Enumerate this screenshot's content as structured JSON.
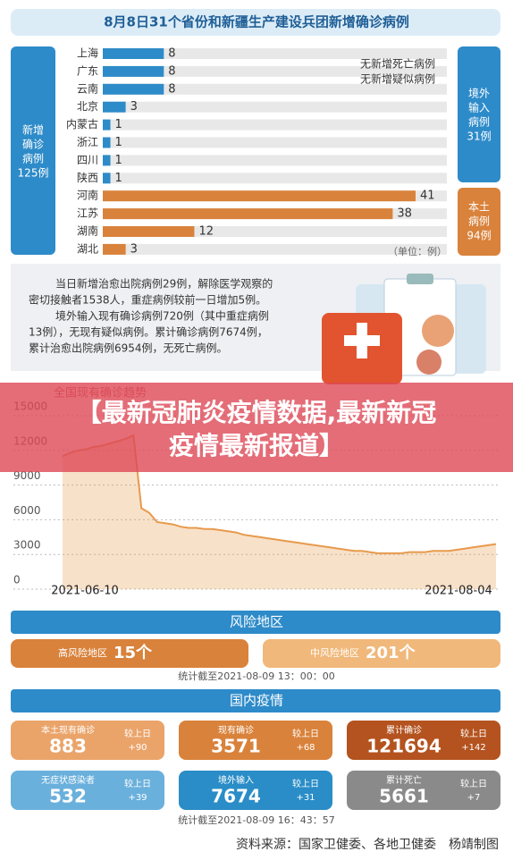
{
  "header": {
    "title": "8月8日31个省份和新疆生产建设兵团新增确诊病例"
  },
  "totals": {
    "new": [
      "新增",
      "确诊",
      "病例",
      "125例"
    ],
    "imported": [
      "境外",
      "输入",
      "病例",
      "31例"
    ],
    "local": [
      "本土",
      "病例",
      "94例"
    ]
  },
  "chart_data": [
    {
      "type": "bar",
      "categories": [
        "上海",
        "广东",
        "云南",
        "北京",
        "内蒙古",
        "浙江",
        "四川",
        "陕西",
        "河南",
        "江苏",
        "湖南",
        "湖北"
      ],
      "values": [
        8,
        8,
        8,
        3,
        1,
        1,
        1,
        1,
        41,
        38,
        12,
        3
      ],
      "colors": [
        "#2e8bc9",
        "#2e8bc9",
        "#2e8bc9",
        "#2e8bc9",
        "#2e8bc9",
        "#2e8bc9",
        "#2e8bc9",
        "#2e8bc9",
        "#d9823b",
        "#d9823b",
        "#d9823b",
        "#d9823b"
      ],
      "annotations": [
        "无新增死亡病例",
        "无新增疑似病例"
      ],
      "unit": "（单位：例）"
    },
    {
      "type": "area",
      "title": "全国现有确诊趋势",
      "categories": [
        "2021-06-10",
        null,
        null,
        null,
        null,
        null,
        null,
        null,
        null,
        null,
        null,
        null,
        null,
        null,
        null,
        null,
        null,
        null,
        null,
        null,
        null,
        null,
        null,
        null,
        null,
        null,
        null,
        null,
        null,
        null,
        null,
        null,
        null,
        null,
        null,
        null,
        null,
        null,
        null,
        null,
        null,
        null,
        null,
        null,
        null,
        null,
        null,
        null,
        null,
        null,
        null,
        null,
        null,
        null,
        null,
        "2021-08-04"
      ],
      "values": [
        11500,
        11800,
        12000,
        12100,
        12300,
        12400,
        12600,
        12800,
        13000,
        13300,
        7000,
        6600,
        5800,
        5700,
        5600,
        5400,
        5300,
        5300,
        5200,
        5200,
        5100,
        5000,
        4900,
        4700,
        4600,
        4500,
        4400,
        4300,
        4200,
        4100,
        4000,
        3900,
        3800,
        3700,
        3600,
        3500,
        3400,
        3300,
        3300,
        3200,
        3100,
        3100,
        3100,
        3100,
        3200,
        3200,
        3200,
        3300,
        3300,
        3300,
        3400,
        3500,
        3600,
        3700,
        3800,
        3900
      ],
      "color": "#e79a4d",
      "ylim": [
        0,
        15000
      ],
      "yticks": [
        0,
        3000,
        6000,
        9000,
        12000,
        15000
      ],
      "grid": true
    }
  ],
  "notes": [
    "当日新增治愈出院病例29例，解除医学观察的",
    "密切接触者1538人，重症病例较前一日增加5例。",
    "境外输入现有确诊病例720例（其中重症病例",
    "13例），无现有疑似病例。累计确诊病例7674例，",
    "累计治愈出院病例6954例，无死亡病例。"
  ],
  "banner": [
    "【最新冠肺炎疫情数据,最新新冠",
    "疫情最新报道】"
  ],
  "risk": {
    "title": "风险地区",
    "high": {
      "label": "高风险地区",
      "value": "15个"
    },
    "medium": {
      "label": "中风险地区",
      "value": "201个"
    },
    "note": "统计截至2021-08-09 13：00：00"
  },
  "domestic": {
    "title": "国内疫情",
    "cards": [
      {
        "label": "本土现有确诊",
        "value": 883,
        "change_label": "较上日",
        "change": "+90",
        "color": "#eaa46a"
      },
      {
        "label": "现有确诊",
        "value": 3571,
        "change_label": "较上日",
        "change": "+68",
        "color": "#d9823b"
      },
      {
        "label": "累计确诊",
        "value": 121694,
        "change_label": "较上日",
        "change": "+142",
        "color": "#b4531f"
      },
      {
        "label": "无症状感染者",
        "value": 532,
        "change_label": "较上日",
        "change": "+39",
        "color": "#6ab0dc"
      },
      {
        "label": "境外输入",
        "value": 7674,
        "change_label": "较上日",
        "change": "+31",
        "color": "#2a8dc7"
      },
      {
        "label": "累计死亡",
        "value": 5661,
        "change_label": "较上日",
        "change": "+7",
        "color": "#8a8a8a"
      }
    ],
    "note": "统计截至2021-08-09 16：43：57"
  },
  "source": "资料来源：国家卫健委、各地卫健委　杨靖制图"
}
